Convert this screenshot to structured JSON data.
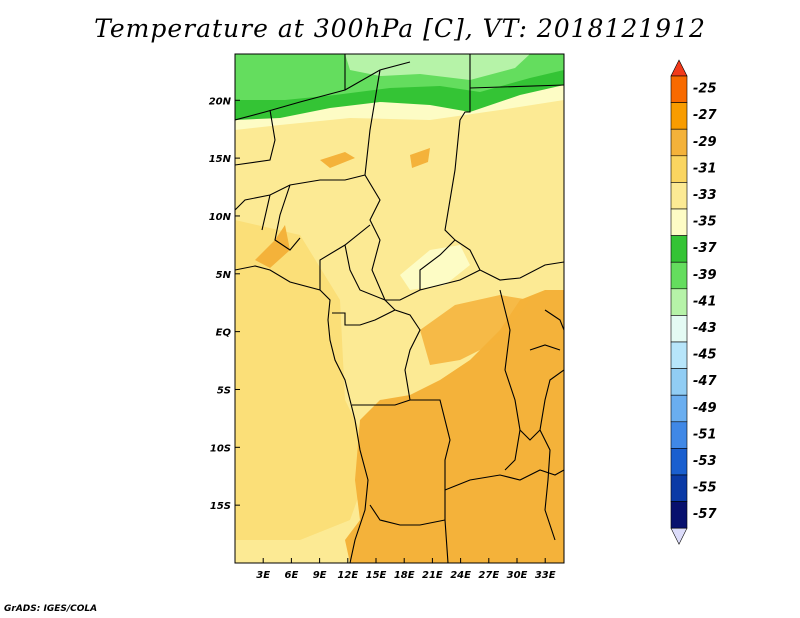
{
  "title": "Temperature at 300hPa [C], VT: 2018121912",
  "credit": "GrADS: IGES/COLA",
  "map": {
    "lon_range": [
      0,
      35
    ],
    "lat_range": [
      -20,
      24
    ],
    "lon_ticks": [
      {
        "value": 3,
        "label": "3E"
      },
      {
        "value": 6,
        "label": "6E"
      },
      {
        "value": 9,
        "label": "9E"
      },
      {
        "value": 12,
        "label": "12E"
      },
      {
        "value": 15,
        "label": "15E"
      },
      {
        "value": 18,
        "label": "18E"
      },
      {
        "value": 21,
        "label": "21E"
      },
      {
        "value": 24,
        "label": "24E"
      },
      {
        "value": 27,
        "label": "27E"
      },
      {
        "value": 30,
        "label": "30E"
      },
      {
        "value": 33,
        "label": "33E"
      }
    ],
    "lat_ticks": [
      {
        "value": 20,
        "label": "20N"
      },
      {
        "value": 15,
        "label": "15N"
      },
      {
        "value": 10,
        "label": "10N"
      },
      {
        "value": 5,
        "label": "5N"
      },
      {
        "value": 0,
        "label": "EQ"
      },
      {
        "value": -5,
        "label": "5S"
      },
      {
        "value": -10,
        "label": "10S"
      },
      {
        "value": -15,
        "label": "15S"
      }
    ]
  },
  "colorbar": {
    "levels": [
      {
        "label": "-25",
        "color": "#f86a00"
      },
      {
        "label": "-27",
        "color": "#f89c00"
      },
      {
        "label": "-29",
        "color": "#f4b23a"
      },
      {
        "label": "-31",
        "color": "#fad560"
      },
      {
        "label": "-33",
        "color": "#fcea94"
      },
      {
        "label": "-35",
        "color": "#fdfcc5"
      },
      {
        "label": "-37",
        "color": "#34c435"
      },
      {
        "label": "-39",
        "color": "#64dd5e"
      },
      {
        "label": "-41",
        "color": "#b6f3a8"
      },
      {
        "label": "-43",
        "color": "#e4fbf4"
      },
      {
        "label": "-45",
        "color": "#b7e5fa"
      },
      {
        "label": "-47",
        "color": "#91cdf4"
      },
      {
        "label": "-49",
        "color": "#6aaef0"
      },
      {
        "label": "-51",
        "color": "#4088e6"
      },
      {
        "label": "-53",
        "color": "#1a5fcf"
      },
      {
        "label": "-55",
        "color": "#0a3aa6"
      },
      {
        "label": "-57",
        "color": "#08116e"
      }
    ],
    "top_arrow_color": "#f23a1a",
    "bottom_arrow_color": "#dcdcfa"
  }
}
